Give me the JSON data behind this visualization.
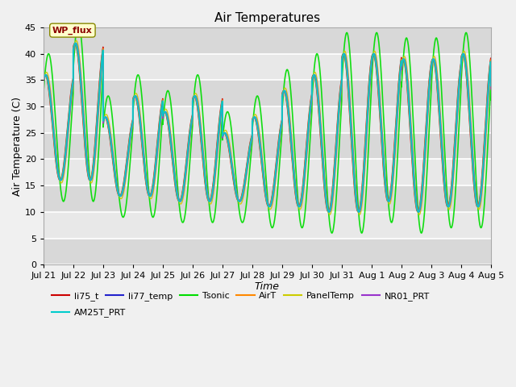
{
  "title": "Air Temperatures",
  "xlabel": "Time",
  "ylabel": "Air Temperature (C)",
  "ylim": [
    0,
    45
  ],
  "yticks": [
    0,
    5,
    10,
    15,
    20,
    25,
    30,
    35,
    40,
    45
  ],
  "annotation_text": "WP_flux",
  "series": [
    {
      "label": "li75_t",
      "color": "#cc0000",
      "lw": 1.0,
      "phase": 0.0,
      "amp_extra": 0.0
    },
    {
      "label": "li77_temp",
      "color": "#2222cc",
      "lw": 1.0,
      "phase": 0.03,
      "amp_extra": 0.0
    },
    {
      "label": "Tsonic",
      "color": "#00dd00",
      "lw": 1.2,
      "phase": 0.12,
      "amp_extra": 4.0
    },
    {
      "label": "AirT",
      "color": "#ff8800",
      "lw": 1.0,
      "phase": 0.01,
      "amp_extra": 0.0
    },
    {
      "label": "PanelTemp",
      "color": "#cccc00",
      "lw": 1.0,
      "phase": 0.05,
      "amp_extra": 0.5
    },
    {
      "label": "NR01_PRT",
      "color": "#9933cc",
      "lw": 1.0,
      "phase": 0.04,
      "amp_extra": 0.0
    },
    {
      "label": "AM25T_PRT",
      "color": "#00cccc",
      "lw": 1.5,
      "phase": 0.02,
      "amp_extra": 0.0
    }
  ],
  "x_tick_labels": [
    "Jul 21",
    "Jul 22",
    "Jul 23",
    "Jul 24",
    "Jul 25",
    "Jul 26",
    "Jul 27",
    "Jul 28",
    "Jul 29",
    "Jul 30",
    "Jul 31",
    "Aug 1",
    "Aug 2",
    "Aug 3",
    "Aug 4",
    "Aug 5"
  ],
  "x_tick_positions": [
    0,
    1,
    2,
    3,
    4,
    5,
    6,
    7,
    8,
    9,
    10,
    11,
    12,
    13,
    14,
    15
  ],
  "day_peaks": [
    36,
    42,
    28,
    32,
    29,
    32,
    25,
    28,
    33,
    36,
    40,
    40,
    39,
    39,
    40,
    35
  ],
  "day_mins": [
    16,
    16,
    13,
    13,
    12,
    12,
    12,
    11,
    11,
    10,
    10,
    12,
    10,
    11,
    11,
    13
  ],
  "background_color": "#f0f0f0",
  "plot_bg_color": "#e8e8e8",
  "grid_color": "#ffffff",
  "title_fontsize": 11,
  "axis_label_fontsize": 9,
  "tick_fontsize": 8,
  "legend_fontsize": 8
}
